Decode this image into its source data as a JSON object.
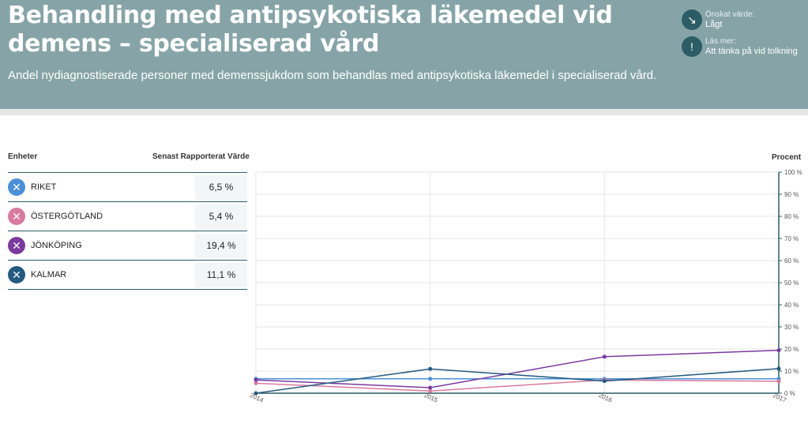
{
  "header": {
    "title": "Behandling med antipsykotiska läkemedel vid demens – specialiserad vård",
    "subtitle": "Andel nydiagnostiserade personer med demenssjukdom som behandlas med antipsykotiska läkemedel i specialiserad vård.",
    "desired_label": "Önskat värde:",
    "desired_value": "Lågt",
    "read_more_label": "Läs mer:",
    "read_more_value": "Att tänka på vid tolkning"
  },
  "table": {
    "col_units": "Enheter",
    "col_latest": "Senast Rapporterat Värde",
    "rows": [
      {
        "name": "RIKET",
        "value": "6,5 %",
        "color": "#4a90d9"
      },
      {
        "name": "ÖSTERGÖTLAND",
        "value": "5,4 %",
        "color": "#d97aa0"
      },
      {
        "name": "JÖNKÖPING",
        "value": "19,4 %",
        "color": "#7b3aa0"
      },
      {
        "name": "KALMAR",
        "value": "11,1 %",
        "color": "#245a80"
      }
    ]
  },
  "chart_data": {
    "type": "line",
    "ylabel": "Procent",
    "x": [
      "2014",
      "2015",
      "2016",
      "2017"
    ],
    "ylim": [
      0,
      100
    ],
    "yticks": [
      "0 %",
      "10 %",
      "20 %",
      "30 %",
      "40 %",
      "50 %",
      "60 %",
      "70 %",
      "80 %",
      "90 %",
      "100 %"
    ],
    "grid": true,
    "series": [
      {
        "name": "RIKET",
        "color": "#4a90d9",
        "values": [
          6.5,
          6.5,
          6.5,
          6.5
        ]
      },
      {
        "name": "ÖSTERGÖTLAND",
        "color": "#d97aa0",
        "values": [
          4.5,
          1.0,
          6.0,
          5.4
        ]
      },
      {
        "name": "JÖNKÖPING",
        "color": "#7b3aa0",
        "values": [
          6.0,
          2.5,
          16.5,
          19.4
        ]
      },
      {
        "name": "KALMAR",
        "color": "#245a80",
        "values": [
          0.0,
          11.0,
          5.5,
          11.1
        ]
      }
    ]
  }
}
